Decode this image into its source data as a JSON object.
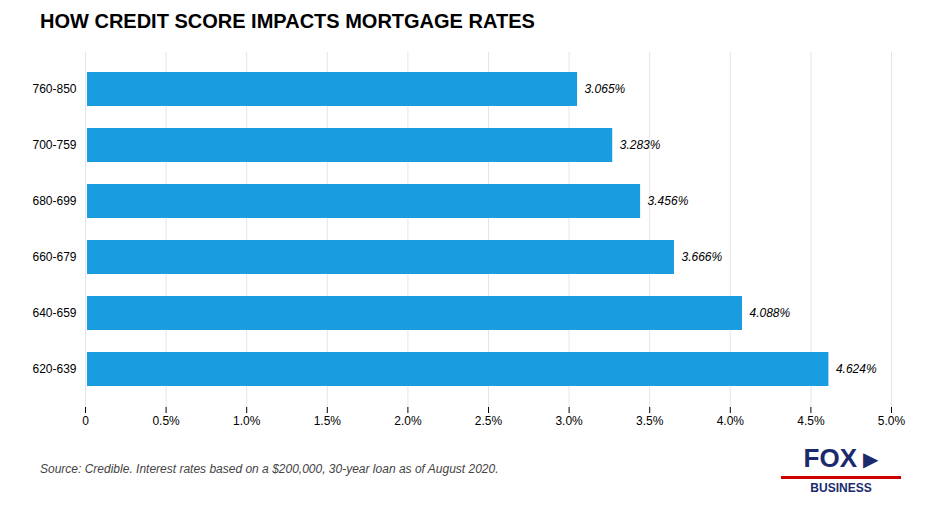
{
  "chart_data": {
    "type": "bar",
    "orientation": "horizontal",
    "title": "HOW CREDIT SCORE IMPACTS MORTGAGE RATES",
    "categories": [
      "760-850",
      "700-759",
      "680-699",
      "660-679",
      "640-659",
      "620-639"
    ],
    "values": [
      3.065,
      3.283,
      3.456,
      3.666,
      4.088,
      4.624
    ],
    "value_labels": [
      "3.065%",
      "3.283%",
      "3.456%",
      "3.666%",
      "4.088%",
      "4.624%"
    ],
    "data_labels": true,
    "color": "#1a9de0",
    "xlim": [
      0,
      5.0
    ],
    "xticks": [
      0,
      {
        "value": 0.5,
        "label": "0.5%"
      },
      {
        "value": 1.0,
        "label": "1.0%"
      },
      {
        "value": 1.5,
        "label": "1.5%"
      },
      {
        "value": 2.0,
        "label": "2.0%"
      },
      {
        "value": 2.5,
        "label": "2.5%"
      },
      {
        "value": 3.0,
        "label": "3.0%"
      },
      {
        "value": 3.5,
        "label": "3.5%"
      },
      {
        "value": 4.0,
        "label": "4.0%"
      },
      {
        "value": 4.5,
        "label": "4.5%"
      },
      {
        "value": 5.0,
        "label": "5.0%"
      }
    ],
    "grid": true,
    "annotations": [
      "Source: Credible. Interest rates based on a $200,000, 30-year loan as of August 2020.",
      "FOX",
      "▶",
      "BUSINESS"
    ]
  }
}
